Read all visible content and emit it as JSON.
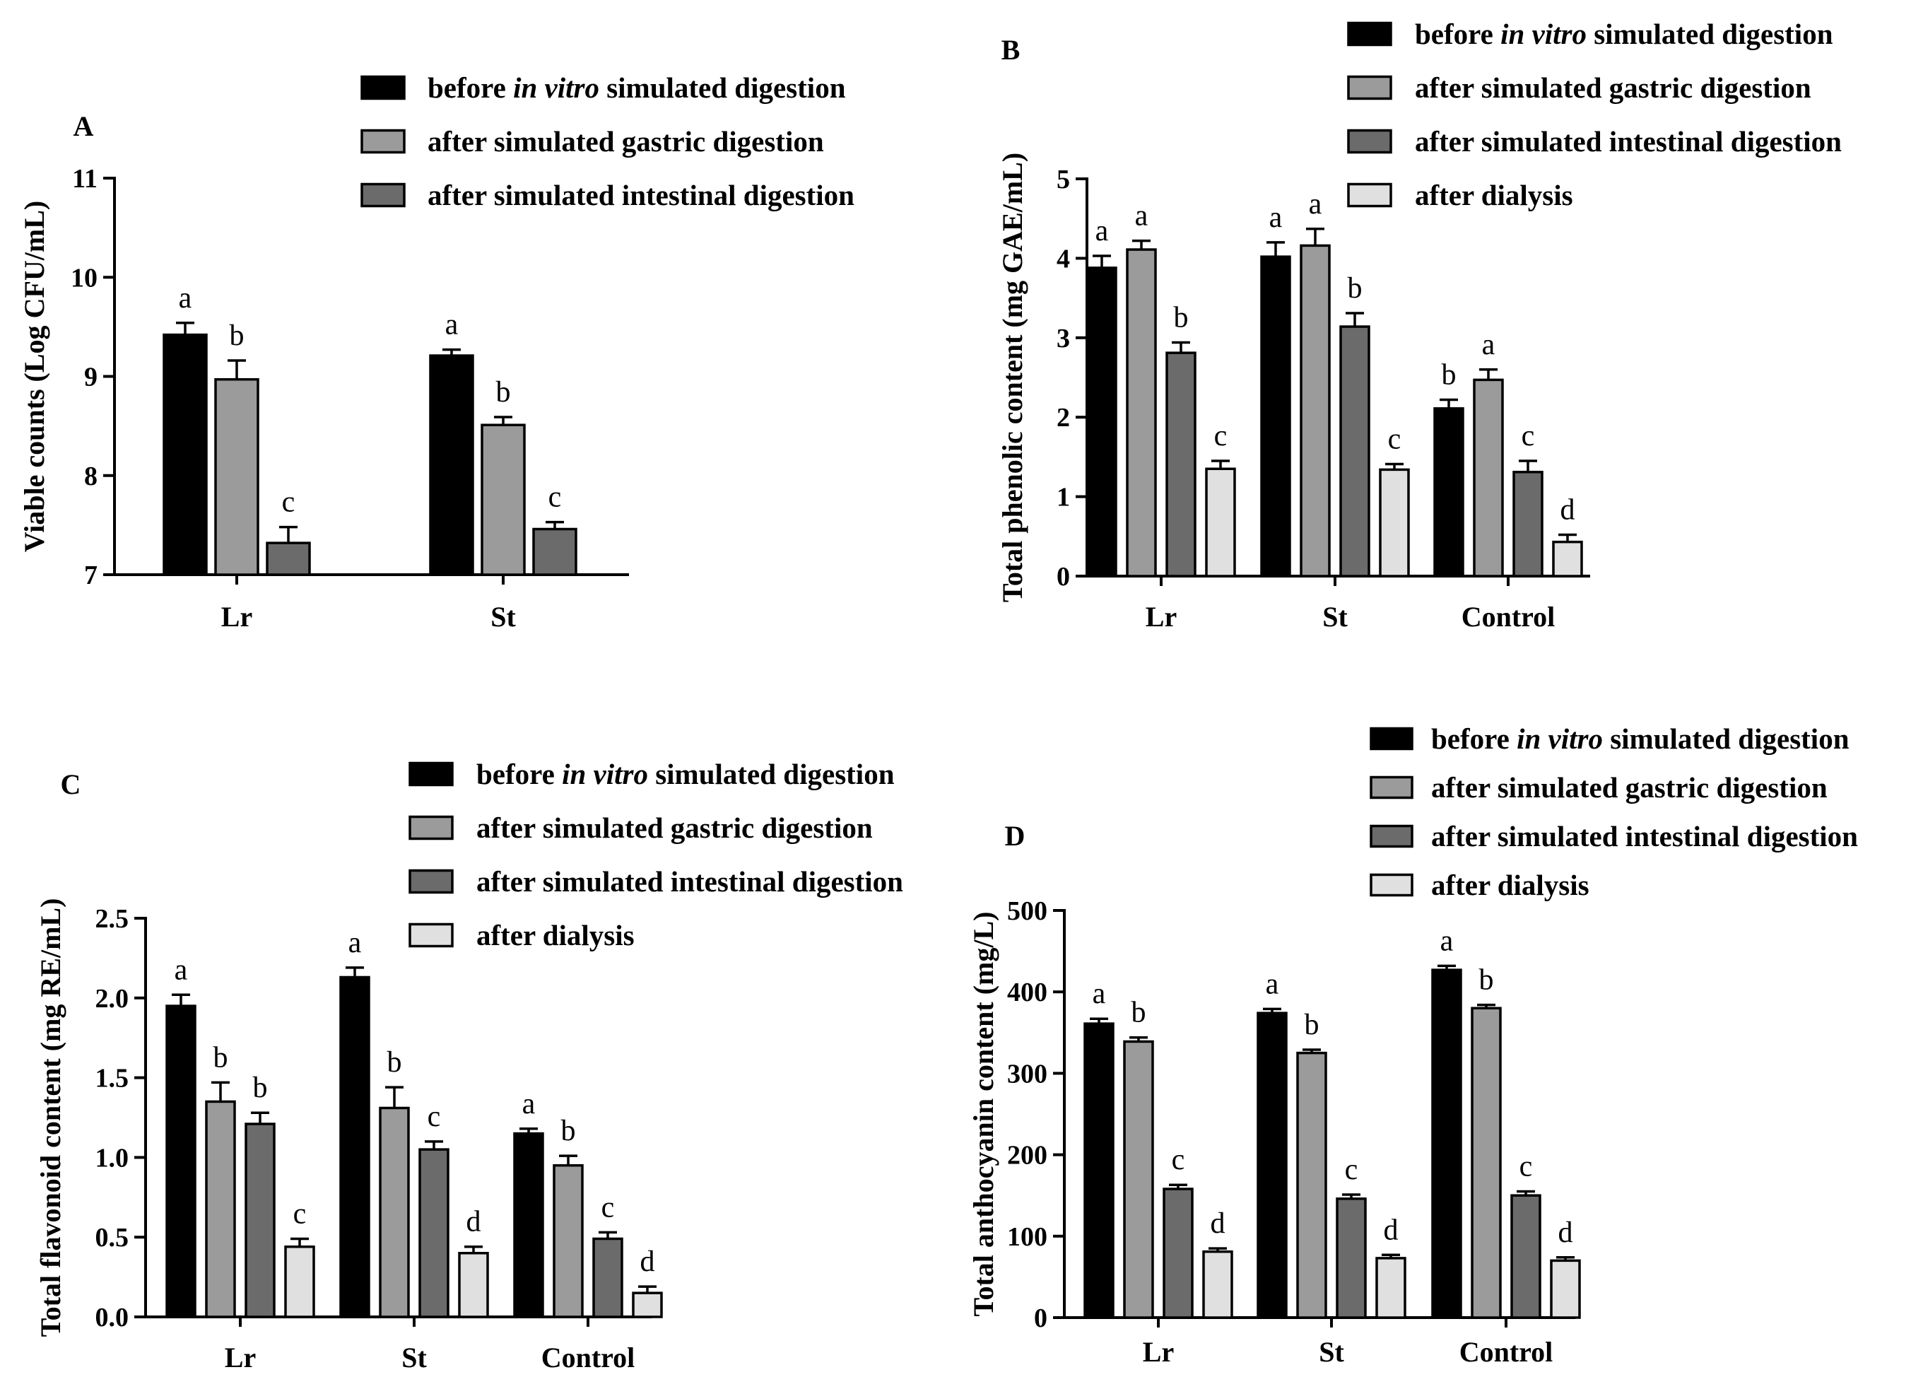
{
  "figure_title": "",
  "colors": {
    "before": "#000000",
    "gastric": "#9b9b9b",
    "intestinal": "#6b6b6b",
    "dialysis": "#e0e0e0",
    "axis": "#000000"
  },
  "chart_data": [
    {
      "panel": "A",
      "type": "bar",
      "ylabel": "Viable counts (Log CFU/mL)",
      "ylim": [
        7,
        11
      ],
      "yticks": [
        7,
        8,
        9,
        10,
        11
      ],
      "categories": [
        "Lr",
        "St"
      ],
      "series": [
        {
          "name": "before in vitro simulated digestion",
          "key": "before",
          "values": [
            9.42,
            9.21
          ],
          "errors": [
            0.12,
            0.06
          ],
          "letters": [
            "a",
            "a"
          ]
        },
        {
          "name": "after simulated gastric digestion",
          "key": "gastric",
          "values": [
            8.97,
            8.51
          ],
          "errors": [
            0.19,
            0.08
          ],
          "letters": [
            "b",
            "b"
          ]
        },
        {
          "name": "after simulated intestinal digestion",
          "key": "intestinal",
          "values": [
            7.32,
            7.46
          ],
          "errors": [
            0.16,
            0.07
          ],
          "letters": [
            "c",
            "c"
          ]
        }
      ],
      "legend": [
        {
          "key": "before",
          "pre": "before ",
          "ital": "in vitro",
          "post": " simulated digestion"
        },
        {
          "key": "gastric",
          "pre": "after simulated gastric digestion",
          "ital": "",
          "post": ""
        },
        {
          "key": "intestinal",
          "pre": "after simulated intestinal digestion",
          "ital": "",
          "post": ""
        }
      ]
    },
    {
      "panel": "B",
      "type": "bar",
      "ylabel": "Total phenolic content (mg GAE/mL)",
      "ylim": [
        0,
        5
      ],
      "yticks": [
        0,
        1,
        2,
        3,
        4,
        5
      ],
      "categories": [
        "Lr",
        "St",
        "Control"
      ],
      "series": [
        {
          "name": "before in vitro simulated digestion",
          "key": "before",
          "values": [
            3.88,
            4.02,
            2.11
          ],
          "errors": [
            0.15,
            0.18,
            0.11
          ],
          "letters": [
            "a",
            "a",
            "b"
          ]
        },
        {
          "name": "after simulated gastric digestion",
          "key": "gastric",
          "values": [
            4.11,
            4.16,
            2.47
          ],
          "errors": [
            0.11,
            0.21,
            0.13
          ],
          "letters": [
            "a",
            "a",
            "a"
          ]
        },
        {
          "name": "after simulated intestinal digestion",
          "key": "intestinal",
          "values": [
            2.81,
            3.14,
            1.31
          ],
          "errors": [
            0.13,
            0.17,
            0.14
          ],
          "letters": [
            "b",
            "b",
            "c"
          ]
        },
        {
          "name": "after dialysis",
          "key": "dialysis",
          "values": [
            1.35,
            1.34,
            0.43
          ],
          "errors": [
            0.1,
            0.07,
            0.09
          ],
          "letters": [
            "c",
            "c",
            "d"
          ]
        }
      ],
      "legend": [
        {
          "key": "before",
          "pre": "before ",
          "ital": "in vitro",
          "post": " simulated digestion"
        },
        {
          "key": "gastric",
          "pre": "after simulated gastric digestion",
          "ital": "",
          "post": ""
        },
        {
          "key": "intestinal",
          "pre": "after simulated intestinal digestion",
          "ital": "",
          "post": ""
        },
        {
          "key": "dialysis",
          "pre": "after dialysis",
          "ital": "",
          "post": ""
        }
      ]
    },
    {
      "panel": "C",
      "type": "bar",
      "ylabel": "Total flavonoid content (mg RE/mL)",
      "ylim": [
        0,
        2.5
      ],
      "yticks": [
        0.0,
        0.5,
        1.0,
        1.5,
        2.0,
        2.5
      ],
      "ytick_labels": [
        "0.0",
        "0.5",
        "1.0",
        "1.5",
        "2.0",
        "2.5"
      ],
      "categories": [
        "Lr",
        "St",
        "Control"
      ],
      "series": [
        {
          "name": "before in vitro simulated digestion",
          "key": "before",
          "values": [
            1.95,
            2.13,
            1.15
          ],
          "errors": [
            0.07,
            0.06,
            0.03
          ],
          "letters": [
            "a",
            "a",
            "a"
          ]
        },
        {
          "name": "after simulated gastric digestion",
          "key": "gastric",
          "values": [
            1.35,
            1.31,
            0.95
          ],
          "errors": [
            0.12,
            0.13,
            0.06
          ],
          "letters": [
            "b",
            "b",
            "b"
          ]
        },
        {
          "name": "after simulated intestinal digestion",
          "key": "intestinal",
          "values": [
            1.21,
            1.05,
            0.49
          ],
          "errors": [
            0.07,
            0.05,
            0.04
          ],
          "letters": [
            "b",
            "c",
            "c"
          ]
        },
        {
          "name": "after dialysis",
          "key": "dialysis",
          "values": [
            0.44,
            0.4,
            0.15
          ],
          "errors": [
            0.05,
            0.04,
            0.04
          ],
          "letters": [
            "c",
            "d",
            "d"
          ]
        }
      ],
      "legend": [
        {
          "key": "before",
          "pre": "before ",
          "ital": "in vitro",
          "post": " simulated digestion"
        },
        {
          "key": "gastric",
          "pre": "after simulated gastric digestion",
          "ital": "",
          "post": ""
        },
        {
          "key": "intestinal",
          "pre": "after simulated intestinal digestion",
          "ital": "",
          "post": ""
        },
        {
          "key": "dialysis",
          "pre": "after dialysis",
          "ital": "",
          "post": ""
        }
      ]
    },
    {
      "panel": "D",
      "type": "bar",
      "ylabel": "Total anthocyanin content (mg/L)",
      "ylim": [
        0,
        500
      ],
      "yticks": [
        0,
        100,
        200,
        300,
        400,
        500
      ],
      "categories": [
        "Lr",
        "St",
        "Control"
      ],
      "series": [
        {
          "name": "before in vitro simulated digestion",
          "key": "before",
          "values": [
            361,
            374,
            427
          ],
          "errors": [
            6,
            5,
            5
          ],
          "letters": [
            "a",
            "a",
            "a"
          ]
        },
        {
          "name": "after simulated gastric digestion",
          "key": "gastric",
          "values": [
            339,
            325,
            380
          ],
          "errors": [
            5,
            4,
            4
          ],
          "letters": [
            "b",
            "b",
            "b"
          ]
        },
        {
          "name": "after simulated intestinal digestion",
          "key": "intestinal",
          "values": [
            158,
            146,
            150
          ],
          "errors": [
            5,
            5,
            5
          ],
          "letters": [
            "c",
            "c",
            "c"
          ]
        },
        {
          "name": "after dialysis",
          "key": "dialysis",
          "values": [
            81,
            73,
            70
          ],
          "errors": [
            4,
            4,
            4
          ],
          "letters": [
            "d",
            "d",
            "d"
          ]
        }
      ],
      "legend": [
        {
          "key": "before",
          "pre": "before ",
          "ital": "in vitro",
          "post": " simulated digestion"
        },
        {
          "key": "gastric",
          "pre": "after simulated gastric digestion",
          "ital": "",
          "post": ""
        },
        {
          "key": "intestinal",
          "pre": "after simulated intestinal digestion",
          "ital": "",
          "post": ""
        },
        {
          "key": "dialysis",
          "pre": "after dialysis",
          "ital": "",
          "post": ""
        }
      ]
    }
  ]
}
